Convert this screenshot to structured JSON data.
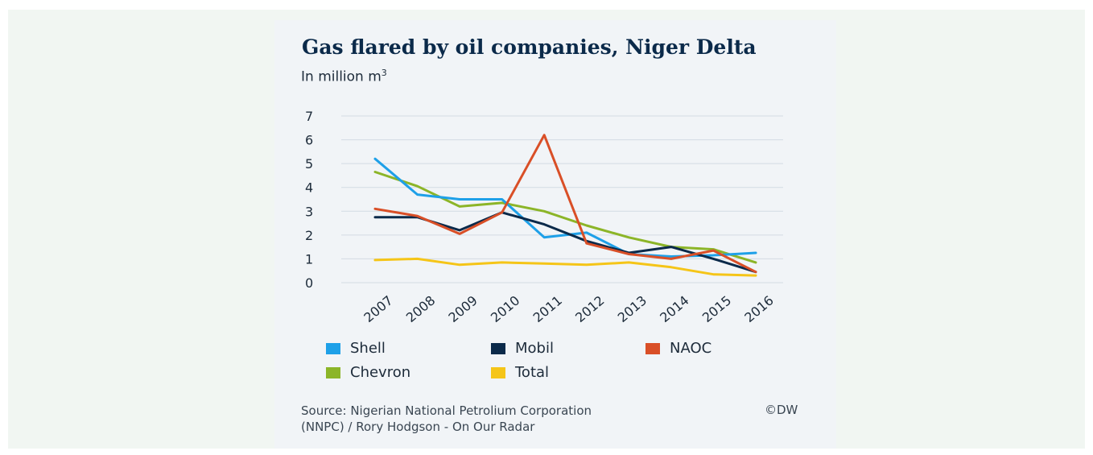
{
  "source_line1": "Source: Nigerian National Petrolium Corporation",
  "source_line2": "(NNPC) / Rory Hodgson - On Our Radar",
  "copyright": "©DW",
  "chart_data": {
    "type": "line",
    "title": "Gas flared by oil companies, Niger Delta",
    "subtitle_text": "In million m",
    "subtitle_sup": "3",
    "xlabel": "",
    "ylabel": "",
    "x": [
      "2007",
      "2008",
      "2009",
      "2010",
      "2011",
      "2012",
      "2013",
      "2014",
      "2015",
      "2016"
    ],
    "yticks": [
      0,
      1,
      2,
      3,
      4,
      5,
      6,
      7
    ],
    "ylim": [
      0,
      7
    ],
    "grid": true,
    "legend_position": "bottom",
    "series": [
      {
        "name": "Shell",
        "color": "#1ea0e8",
        "values": [
          5.2,
          3.7,
          3.5,
          3.5,
          1.9,
          2.1,
          1.2,
          1.1,
          1.15,
          1.25
        ]
      },
      {
        "name": "Mobil",
        "color": "#0b2a4a",
        "values": [
          2.75,
          2.75,
          2.2,
          2.95,
          2.45,
          1.75,
          1.25,
          1.5,
          1.0,
          0.45
        ]
      },
      {
        "name": "NAOC",
        "color": "#d94f27",
        "values": [
          3.1,
          2.8,
          2.05,
          2.95,
          6.2,
          1.65,
          1.2,
          1.0,
          1.35,
          0.45
        ]
      },
      {
        "name": "Chevron",
        "color": "#8cb528",
        "values": [
          4.65,
          4.05,
          3.2,
          3.35,
          3.0,
          2.4,
          1.9,
          1.5,
          1.4,
          0.85
        ]
      },
      {
        "name": "Total",
        "color": "#f5c518",
        "values": [
          0.95,
          1.0,
          0.75,
          0.85,
          0.8,
          0.75,
          0.85,
          0.65,
          0.35,
          0.3
        ]
      }
    ]
  }
}
